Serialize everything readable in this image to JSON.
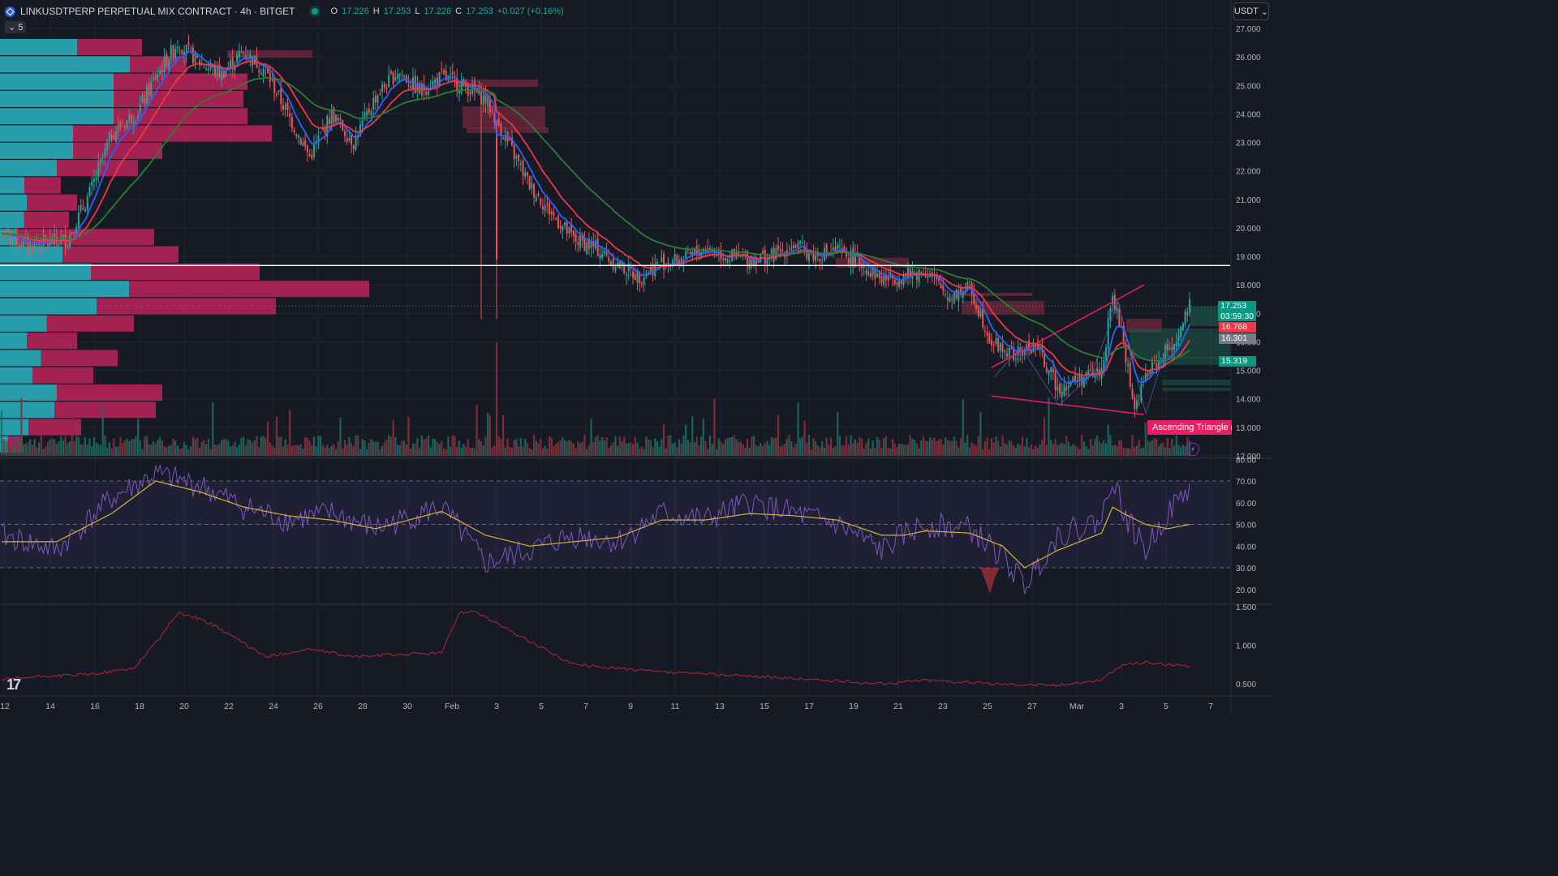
{
  "header": {
    "title": "LINKUSDTPERP PERPETUAL MIX CONTRACT · 4h · BITGET",
    "ohlc": [
      {
        "label": "O",
        "value": "17.226"
      },
      {
        "label": "H",
        "value": "17.253"
      },
      {
        "label": "L",
        "value": "17.226"
      },
      {
        "label": "C",
        "value": "17.253"
      },
      {
        "label": "",
        "value": "+0.027 (+0.16%)"
      }
    ],
    "collapse_label": "5",
    "currency": "USDT"
  },
  "price_tags": {
    "current": "17.253",
    "countdown": "03:59:30",
    "ema_fast": "16.768",
    "ema_mid": "16.301",
    "ema_slow": "15.319"
  },
  "pattern_label": "Ascending Triangle (E",
  "colors": {
    "up": "#26a69a",
    "down": "#ef5350",
    "ema_blue": "#2962ff",
    "ema_red": "#f23645",
    "ema_green": "#2e7d32",
    "rsi": "#7e57c2",
    "rsi_ma": "#d4b23a",
    "lower": "#b22833",
    "pattern": "#e91e63",
    "hline": "#ffffff"
  },
  "chart_data": [
    {
      "type": "candlestick",
      "name": "LINKUSDTPERP",
      "x_ticks": [
        "12",
        "14",
        "16",
        "18",
        "20",
        "22",
        "24",
        "26",
        "28",
        "30",
        "Feb",
        "3",
        "5",
        "7",
        "9",
        "11",
        "13",
        "15",
        "17",
        "19",
        "21",
        "23",
        "25",
        "27",
        "Mar",
        "3",
        "5",
        "7"
      ],
      "y_ticks": [
        "27.000",
        "26.000",
        "25.000",
        "24.000",
        "23.000",
        "22.000",
        "21.000",
        "20.000",
        "19.000",
        "18.000",
        "17.000",
        "16.000",
        "15.000",
        "14.000",
        "13.000",
        "12.000"
      ],
      "ylim": [
        12,
        27.3
      ],
      "anchors": {
        "x_index": [
          0,
          12,
          30,
          40,
          50,
          62,
          70,
          80,
          90,
          100,
          110,
          120,
          140,
          150,
          160,
          170,
          180,
          190,
          200,
          210,
          220,
          230,
          240,
          250,
          260,
          270,
          280,
          290,
          300,
          310,
          320,
          330,
          340,
          350,
          360,
          370,
          380,
          390,
          400,
          410,
          420,
          430,
          440,
          450,
          460,
          470,
          480,
          490,
          500,
          505,
          510,
          515,
          520,
          535,
          540
        ],
        "close": [
          19.8,
          19.4,
          19.6,
          21.2,
          23.3,
          24.1,
          25.3,
          26.5,
          25.8,
          25.4,
          26.2,
          25.5,
          22.5,
          24.0,
          23.0,
          24.6,
          25.5,
          24.8,
          25.3,
          25.0,
          24.5,
          23.0,
          21.5,
          20.5,
          19.6,
          19.3,
          18.7,
          18.3,
          18.8,
          18.9,
          19.3,
          19.0,
          18.9,
          19.0,
          19.4,
          19.0,
          19.2,
          18.8,
          18.2,
          18.3,
          18.5,
          17.6,
          17.9,
          16.0,
          15.5,
          15.9,
          14.4,
          14.7,
          15.0,
          17.6,
          16.0,
          13.6,
          14.8,
          16.2,
          17.25
        ]
      },
      "horizontal_line": 18.68,
      "ema": [
        {
          "color_key": "ema_blue",
          "period": 9
        },
        {
          "color_key": "ema_red",
          "period": 21
        },
        {
          "color_key": "ema_green",
          "period": 55
        }
      ],
      "pattern": {
        "name": "Ascending Triangle",
        "upper": {
          "x": [
            1222,
            1410
          ],
          "y": [
            15.1,
            18.0
          ]
        },
        "lower": {
          "x": [
            1222,
            1410
          ],
          "y": [
            14.1,
            13.45
          ]
        }
      }
    },
    {
      "type": "bar",
      "name": "Volume",
      "note": "per-candle volume bars colored by candle direction"
    },
    {
      "type": "line",
      "name": "RSI",
      "y_ticks": [
        "80.00",
        "70.00",
        "60.00",
        "50.00",
        "40.00",
        "30.00",
        "20.00"
      ],
      "ylim": [
        15,
        82
      ],
      "bands": [
        70,
        50,
        30
      ],
      "anchors": {
        "x_index": [
          0,
          25,
          50,
          70,
          90,
          110,
          130,
          150,
          170,
          200,
          220,
          240,
          260,
          280,
          300,
          320,
          340,
          360,
          380,
          400,
          410,
          420,
          440,
          455,
          465,
          480,
          500,
          505,
          510,
          520,
          530,
          540
        ],
        "rsi": [
          45,
          38,
          62,
          73,
          68,
          58,
          52,
          55,
          48,
          58,
          32,
          38,
          45,
          42,
          55,
          52,
          60,
          55,
          50,
          38,
          45,
          50,
          48,
          35,
          22,
          45,
          52,
          73,
          55,
          38,
          55,
          67
        ],
        "rsi_ma": [
          42,
          42,
          55,
          70,
          65,
          58,
          54,
          52,
          48,
          56,
          45,
          40,
          42,
          44,
          52,
          52,
          55,
          54,
          52,
          45,
          45,
          47,
          46,
          40,
          30,
          38,
          46,
          58,
          55,
          50,
          48,
          50
        ]
      }
    },
    {
      "type": "line",
      "name": "Lower indicator",
      "y_ticks": [
        "1.500",
        "1.000",
        "0.500"
      ],
      "ylim": [
        0.4,
        1.55
      ],
      "anchors": {
        "x_index": [
          0,
          20,
          40,
          60,
          72,
          80,
          90,
          100,
          120,
          140,
          160,
          180,
          200,
          208,
          215,
          230,
          260,
          300,
          340,
          370,
          400,
          420,
          450,
          480,
          500,
          510,
          520,
          540
        ],
        "value": [
          0.55,
          0.6,
          0.62,
          0.7,
          1.1,
          1.42,
          1.35,
          1.2,
          0.85,
          0.95,
          0.85,
          0.88,
          0.9,
          1.42,
          1.45,
          1.2,
          0.75,
          0.65,
          0.6,
          0.55,
          0.5,
          0.55,
          0.5,
          0.48,
          0.55,
          0.75,
          0.78,
          0.72
        ]
      }
    }
  ]
}
